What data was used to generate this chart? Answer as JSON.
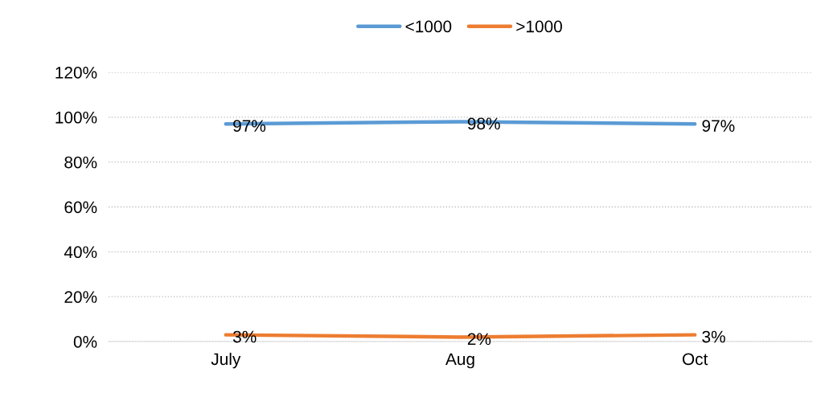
{
  "chart_data": {
    "type": "line",
    "categories": [
      "July",
      "Aug",
      "Oct"
    ],
    "series": [
      {
        "name": "<1000",
        "color": "#5b9bd5",
        "values": [
          97,
          98,
          97
        ],
        "value_labels": [
          "97%",
          "98%",
          "97%"
        ]
      },
      {
        "name": ">1000",
        "color": "#ed7d31",
        "values": [
          3,
          2,
          3
        ],
        "value_labels": [
          "3%",
          "2%",
          "3%"
        ]
      }
    ],
    "ylim": [
      0,
      120
    ],
    "yticks": [
      {
        "value": 0,
        "label": "0%"
      },
      {
        "value": 20,
        "label": "20%"
      },
      {
        "value": 40,
        "label": "40%"
      },
      {
        "value": 60,
        "label": "60%"
      },
      {
        "value": 80,
        "label": "80%"
      },
      {
        "value": 100,
        "label": "100%"
      },
      {
        "value": 120,
        "label": "120%"
      }
    ],
    "grid": "y",
    "legend": "top",
    "marker": "none",
    "line_style": "solid"
  }
}
